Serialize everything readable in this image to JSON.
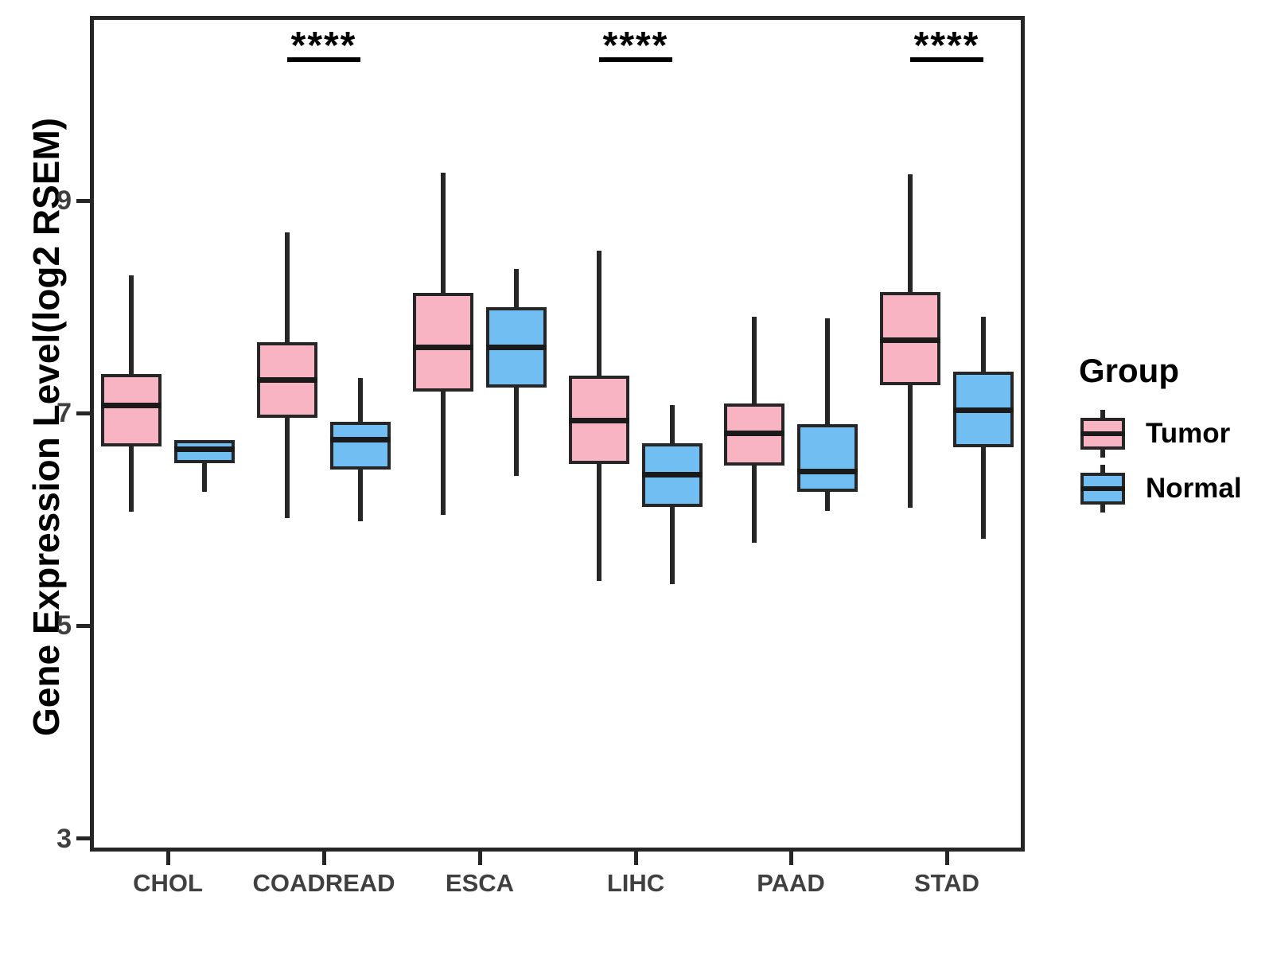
{
  "figure": {
    "legend": {
      "title": "Group",
      "items": [
        {
          "label": "Tumor",
          "color": "#F9B4C4"
        },
        {
          "label": "Normal",
          "color": "#71BEF2"
        }
      ]
    }
  },
  "chart_data": {
    "type": "box",
    "title": "",
    "xlabel": "",
    "ylabel": "Gene Expression Level(log2 RSEM)",
    "categories": [
      "CHOL",
      "COADREAD",
      "ESCA",
      "LIHC",
      "PAAD",
      "STAD"
    ],
    "y_ticks": [
      9,
      7,
      5,
      3
    ],
    "ylim": [
      2.9,
      10.7
    ],
    "grid": false,
    "legend_position": "right",
    "stroke_color": "#262626",
    "series": [
      {
        "name": "Tumor",
        "color": "#F9B4C4",
        "boxes": [
          {
            "min": 6.07,
            "q1": 6.69,
            "median": 7.07,
            "q3": 7.37,
            "max": 8.3
          },
          {
            "min": 6.01,
            "q1": 6.96,
            "median": 7.31,
            "q3": 7.67,
            "max": 8.7
          },
          {
            "min": 6.04,
            "q1": 7.2,
            "median": 7.62,
            "q3": 8.13,
            "max": 9.26
          },
          {
            "min": 5.42,
            "q1": 6.52,
            "median": 6.93,
            "q3": 7.35,
            "max": 8.53
          },
          {
            "min": 5.78,
            "q1": 6.51,
            "median": 6.81,
            "q3": 7.09,
            "max": 7.91
          },
          {
            "min": 6.11,
            "q1": 7.26,
            "median": 7.69,
            "q3": 8.14,
            "max": 9.25
          }
        ]
      },
      {
        "name": "Normal",
        "color": "#71BEF2",
        "boxes": [
          {
            "min": 6.26,
            "q1": 6.53,
            "median": 6.66,
            "q3": 6.75,
            "max": 6.75
          },
          {
            "min": 5.98,
            "q1": 6.47,
            "median": 6.75,
            "q3": 6.92,
            "max": 7.33
          },
          {
            "min": 6.41,
            "q1": 7.24,
            "median": 7.62,
            "q3": 8.0,
            "max": 8.36
          },
          {
            "min": 5.39,
            "q1": 6.12,
            "median": 6.42,
            "q3": 6.72,
            "max": 7.08
          },
          {
            "min": 6.08,
            "q1": 6.26,
            "median": 6.45,
            "q3": 6.9,
            "max": 7.89
          },
          {
            "min": 5.82,
            "q1": 6.68,
            "median": 7.03,
            "q3": 7.39,
            "max": 7.91
          }
        ]
      }
    ],
    "annotations": [
      {
        "category": "COADREAD",
        "text": "****"
      },
      {
        "category": "LIHC",
        "text": "****"
      },
      {
        "category": "STAD",
        "text": "****"
      }
    ]
  }
}
